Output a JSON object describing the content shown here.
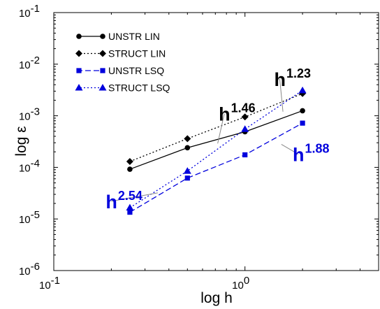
{
  "chart_data": {
    "type": "line",
    "title": "",
    "xlabel": "log h",
    "ylabel": "log ε",
    "xscale": "log",
    "yscale": "log",
    "xlim": [
      0.1,
      5
    ],
    "ylim": [
      1e-06,
      0.1
    ],
    "grid": false,
    "legend_position": "top-left",
    "x_ticks": [
      {
        "base": "10",
        "exp": "-1",
        "value": 0.1
      },
      {
        "base": "10",
        "exp": "0",
        "value": 1
      }
    ],
    "y_ticks": [
      {
        "base": "10",
        "exp": "-6",
        "value": 1e-06
      },
      {
        "base": "10",
        "exp": "-5",
        "value": 1e-05
      },
      {
        "base": "10",
        "exp": "-4",
        "value": 0.0001
      },
      {
        "base": "10",
        "exp": "-3",
        "value": 0.001
      },
      {
        "base": "10",
        "exp": "-2",
        "value": 0.01
      },
      {
        "base": "10",
        "exp": "-1",
        "value": 0.1
      }
    ],
    "x": [
      0.25,
      0.5,
      1,
      2
    ],
    "series": [
      {
        "name": "UNSTR LIN",
        "color": "#000000",
        "marker": "circle",
        "line": "solid",
        "values": [
          9.2e-05,
          0.00024,
          0.00049,
          0.00125
        ]
      },
      {
        "name": "STRUCT LIN",
        "color": "#000000",
        "marker": "diamond",
        "line": "dotted",
        "values": [
          0.00013,
          0.00036,
          0.00095,
          0.0027
        ]
      },
      {
        "name": "UNSTR LSQ",
        "color": "#0000dd",
        "marker": "square",
        "line": "dashed",
        "values": [
          1.35e-05,
          6.2e-05,
          0.000175,
          0.00072
        ]
      },
      {
        "name": "STRUCT LSQ",
        "color": "#0000dd",
        "marker": "triangle",
        "line": "dotted",
        "values": [
          1.65e-05,
          8.5e-05,
          0.00055,
          0.0031
        ]
      }
    ],
    "annotations": [
      {
        "base": "h",
        "exp": "1.46",
        "color": "#000000",
        "x": 0.78,
        "y": 0.0011,
        "leader_to": [
          0.72,
          0.00029
        ]
      },
      {
        "base": "h",
        "exp": "1.23",
        "color": "#000000",
        "x": 1.52,
        "y": 0.0052,
        "leader_to": [
          1.58,
          0.0012
        ]
      },
      {
        "base": "h",
        "exp": "1.88",
        "color": "#0000dd",
        "x": 1.9,
        "y": 0.00018,
        "leader_to": [
          1.55,
          0.00028
        ]
      },
      {
        "base": "h",
        "exp": "2.54",
        "color": "#0000dd",
        "x": 0.2,
        "y": 2.2e-05,
        "leader_to": [
          0.35,
          3.2e-05
        ]
      }
    ]
  }
}
